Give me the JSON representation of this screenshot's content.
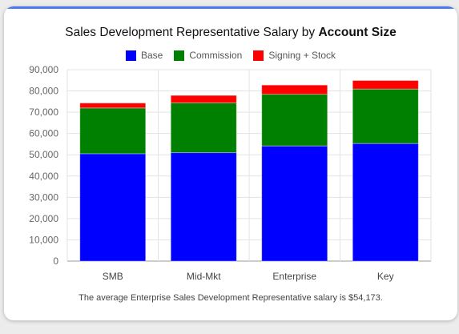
{
  "title": {
    "main": "Sales Development Representative Salary by ",
    "bold": "Account Size"
  },
  "footer_text": "The average Enterprise Sales Development Representative salary is $54,173.",
  "colors": {
    "accent": "#4a7af0",
    "base": "#0000ff",
    "commission": "#008000",
    "signing_stock": "#ff0000",
    "grid": "#e3e3e3",
    "axis_text": "#666666"
  },
  "chart_data": {
    "type": "bar",
    "stacked": true,
    "title": "Sales Development Representative Salary by Account Size",
    "categories": [
      "SMB",
      "Mid-Mkt",
      "Enterprise",
      "Key"
    ],
    "series": [
      {
        "name": "Base",
        "values": [
          50500,
          51000,
          54173,
          55300
        ]
      },
      {
        "name": "Commission",
        "values": [
          21500,
          23400,
          24300,
          25600
        ]
      },
      {
        "name": "Signing + Stock",
        "values": [
          2300,
          3500,
          4300,
          4000
        ]
      }
    ],
    "ylim": [
      0,
      90000
    ],
    "yticks": [
      "0",
      "10,000",
      "20,000",
      "30,000",
      "40,000",
      "50,000",
      "60,000",
      "70,000",
      "80,000",
      "90,000"
    ],
    "legend_position": "top-center",
    "grid": true
  }
}
